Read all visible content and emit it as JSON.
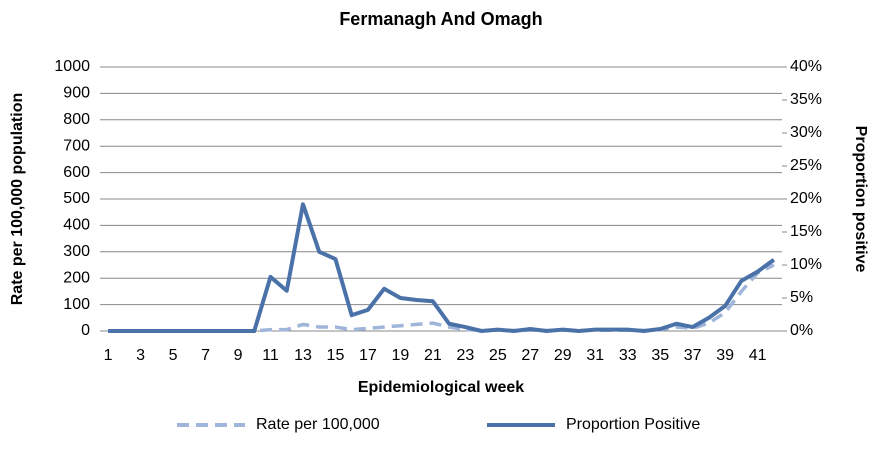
{
  "chart_data": {
    "type": "line",
    "title": "Fermanagh And Omagh",
    "x_label": "Epidemiological week",
    "y_label": "Rate per 100,000 population",
    "y2_label": "Proportion positive",
    "categories": [
      "1",
      null,
      "3",
      null,
      "5",
      null,
      "7",
      null,
      "9",
      null,
      "11",
      null,
      "13",
      null,
      "15",
      null,
      "17",
      null,
      "19",
      null,
      "21",
      null,
      "23",
      null,
      "25",
      null,
      "27",
      null,
      "29",
      null,
      "31",
      null,
      "33",
      null,
      "35",
      null,
      "37",
      null,
      "39",
      null,
      "41",
      null
    ],
    "series": [
      {
        "name": "Rate per 100,000",
        "color": "#9fb5d9",
        "dash": true,
        "axis": "y",
        "values": [
          0,
          0,
          0,
          0,
          0,
          0,
          0,
          0,
          0,
          0,
          5,
          5,
          25,
          15,
          15,
          5,
          10,
          15,
          20,
          25,
          30,
          15,
          5,
          3,
          3,
          2,
          3,
          2,
          3,
          2,
          3,
          3,
          3,
          2,
          5,
          15,
          10,
          30,
          70,
          150,
          220,
          250
        ]
      },
      {
        "name": "Proportion Positive",
        "color": "#4a72a8",
        "dash": false,
        "axis": "y2",
        "values": [
          0,
          0,
          0,
          0,
          0,
          0,
          0,
          0,
          0,
          0,
          8.2,
          6.1,
          19.2,
          12,
          10.9,
          2.4,
          3.2,
          6.4,
          5,
          4.7,
          4.5,
          1.1,
          0.6,
          0,
          0.2,
          0,
          0.3,
          0,
          0.2,
          0,
          0.2,
          0.2,
          0.2,
          0,
          0.3,
          1.1,
          0.6,
          2,
          3.8,
          7.6,
          9,
          10.8
        ]
      }
    ],
    "ylim": [
      0,
      1000
    ],
    "yticks": [
      0,
      100,
      200,
      300,
      400,
      500,
      600,
      700,
      800,
      900,
      1000
    ],
    "y2lim": [
      0,
      40
    ],
    "y2ticks": [
      {
        "value": 0,
        "label": "0%"
      },
      {
        "value": 5,
        "label": "5%"
      },
      {
        "value": 10,
        "label": "10%"
      },
      {
        "value": 15,
        "label": "15%"
      },
      {
        "value": 20,
        "label": "20%"
      },
      {
        "value": 25,
        "label": "25%"
      },
      {
        "value": 30,
        "label": "30%"
      },
      {
        "value": 35,
        "label": "35%"
      },
      {
        "value": 40,
        "label": "40%"
      }
    ],
    "grid": true,
    "legend": "bottom"
  }
}
